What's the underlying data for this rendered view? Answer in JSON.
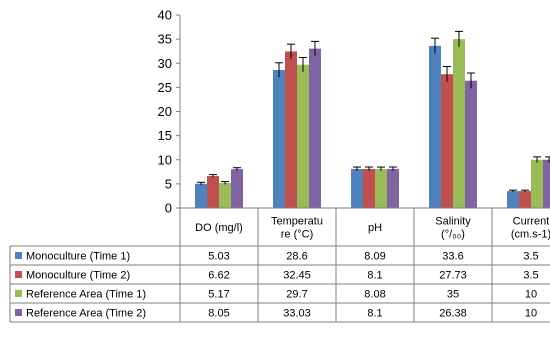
{
  "chart_data": {
    "type": "bar",
    "categories": [
      "DO (mg/l)",
      "Temperature (°C)",
      "pH",
      "Salinity (°/₀₀)",
      "Current (cm.s-1)"
    ],
    "category_lines": [
      [
        "DO (mg/l)"
      ],
      [
        "Temperatu",
        "re (°C)"
      ],
      [
        "pH"
      ],
      [
        "Salinity",
        "(°/₀₀)"
      ],
      [
        "Current",
        "(cm.s-1)"
      ]
    ],
    "series": [
      {
        "name": "Monoculture (Time 1)",
        "color": "#4F81BD",
        "values": [
          5.03,
          28.6,
          8.09,
          33.6,
          3.5
        ],
        "labels": [
          "5.03",
          "28.6",
          "8.09",
          "33.6",
          "3.5"
        ],
        "errors": [
          0.3,
          1.5,
          0.4,
          1.6,
          0.2
        ]
      },
      {
        "name": "Monoculture (Time 2)",
        "color": "#C0504D",
        "values": [
          6.62,
          32.45,
          8.1,
          27.73,
          3.5
        ],
        "labels": [
          "6.62",
          "32.45",
          "8.1",
          "27.73",
          "3.5"
        ],
        "errors": [
          0.3,
          1.5,
          0.4,
          1.6,
          0.2
        ]
      },
      {
        "name": "Reference Area (Time 1)",
        "color": "#9BBB59",
        "values": [
          5.17,
          29.7,
          8.08,
          35,
          10
        ],
        "labels": [
          "5.17",
          "29.7",
          "8.08",
          "35",
          "10"
        ],
        "errors": [
          0.3,
          1.5,
          0.4,
          1.6,
          0.6
        ]
      },
      {
        "name": "Reference Area (Time 2)",
        "color": "#8064A2",
        "values": [
          8.05,
          33.03,
          8.1,
          26.38,
          10
        ],
        "labels": [
          "8.05",
          "33.03",
          "8.1",
          "26.38",
          "10"
        ],
        "errors": [
          0.3,
          1.5,
          0.4,
          1.6,
          0.6
        ]
      }
    ],
    "ylim": [
      0,
      40
    ],
    "yticks": [
      0,
      5,
      10,
      15,
      20,
      25,
      30,
      35,
      40
    ],
    "error_bars": true,
    "data_table": true,
    "grid": false
  }
}
